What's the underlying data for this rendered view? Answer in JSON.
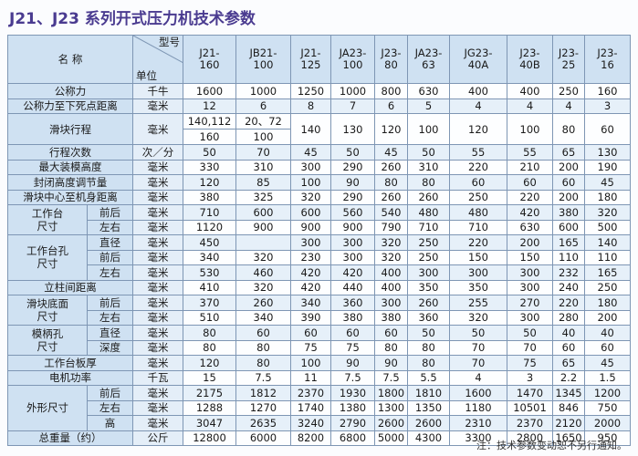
{
  "title": "J21、J23 系列开式压力机技术参数",
  "table": {
    "corner": {
      "name": "名 称",
      "model": "型号",
      "unit": "单位"
    },
    "models": [
      "J21-\n160",
      "JB21-\n100",
      "J21-\n125",
      "JA23-\n100",
      "J23-\n80",
      "JA23-\n63",
      "JG23-\n40A",
      "J23-\n40B",
      "J23-\n25",
      "J23-\n16"
    ],
    "rows": [
      {
        "name": "公称力",
        "unit": "千牛",
        "values": [
          1600,
          1000,
          1250,
          1000,
          800,
          630,
          400,
          400,
          250,
          160
        ]
      },
      {
        "name": "公称力至下死点距离",
        "unit": "毫米",
        "values": [
          12,
          6,
          8,
          7,
          6,
          5,
          4,
          4,
          4,
          3
        ]
      },
      {
        "name": "滑块行程",
        "unit": "毫米",
        "values": [
          [
            "140,112",
            "160"
          ],
          [
            "20、72",
            "100"
          ],
          140,
          130,
          120,
          100,
          120,
          100,
          80,
          60
        ]
      },
      {
        "name": "行程次数",
        "unit": "次／分",
        "values": [
          50,
          70,
          45,
          50,
          45,
          50,
          55,
          55,
          65,
          130
        ]
      },
      {
        "name": "最大装模高度",
        "unit": "毫米",
        "values": [
          330,
          310,
          300,
          290,
          260,
          310,
          220,
          210,
          200,
          190
        ]
      },
      {
        "name": "封闭高度调节量",
        "unit": "毫米",
        "values": [
          120,
          85,
          100,
          90,
          80,
          80,
          60,
          60,
          60,
          45
        ]
      },
      {
        "name": "滑块中心至机身距离",
        "unit": "毫米",
        "values": [
          380,
          325,
          320,
          290,
          260,
          260,
          250,
          220,
          200,
          180
        ]
      },
      {
        "name": "工作台\n尺寸",
        "parts": [
          {
            "name": "前后",
            "unit": "毫米",
            "values": [
              710,
              600,
              600,
              560,
              540,
              480,
              480,
              420,
              380,
              320
            ]
          },
          {
            "name": "左右",
            "unit": "毫米",
            "values": [
              1120,
              900,
              900,
              900,
              790,
              710,
              710,
              630,
              600,
              500
            ]
          }
        ]
      },
      {
        "name": "工作台孔\n尺寸",
        "parts": [
          {
            "name": "直径",
            "unit": "毫米",
            "values": [
              450,
              null,
              300,
              300,
              320,
              250,
              220,
              200,
              165,
              140
            ]
          },
          {
            "name": "前后",
            "unit": "毫米",
            "values": [
              340,
              320,
              230,
              300,
              320,
              250,
              150,
              150,
              110,
              110
            ]
          },
          {
            "name": "左右",
            "unit": "毫米",
            "values": [
              530,
              460,
              420,
              420,
              400,
              300,
              300,
              300,
              232,
              165
            ]
          }
        ]
      },
      {
        "name": "立柱间距离",
        "unit": "毫米",
        "values": [
          410,
          320,
          420,
          440,
          400,
          350,
          350,
          300,
          240,
          250
        ]
      },
      {
        "name": "滑块底面\n尺寸",
        "parts": [
          {
            "name": "前后",
            "unit": "毫米",
            "values": [
              370,
              260,
              340,
              360,
              300,
              260,
              255,
              270,
              220,
              180
            ]
          },
          {
            "name": "左右",
            "unit": "毫米",
            "values": [
              510,
              340,
              390,
              380,
              380,
              360,
              320,
              300,
              280,
              200
            ]
          }
        ]
      },
      {
        "name": "模柄孔\n尺寸",
        "parts": [
          {
            "name": "直径",
            "unit": "毫米",
            "values": [
              80,
              60,
              60,
              60,
              60,
              50,
              50,
              50,
              40,
              40
            ]
          },
          {
            "name": "深度",
            "unit": "毫米",
            "values": [
              80,
              80,
              75,
              75,
              80,
              80,
              70,
              70,
              60,
              60
            ]
          }
        ]
      },
      {
        "name": "工作台板厚",
        "unit": "毫米",
        "values": [
          120,
          80,
          100,
          90,
          90,
          80,
          70,
          75,
          65,
          45
        ]
      },
      {
        "name": "电机功率",
        "unit": "千瓦",
        "values": [
          15,
          7.5,
          11,
          7.5,
          7.5,
          5.5,
          4,
          3,
          2.2,
          1.5
        ]
      },
      {
        "name": "外形尺寸",
        "parts": [
          {
            "name": "前后",
            "unit": "毫米",
            "values": [
              2175,
              1812,
              2370,
              1930,
              1800,
              1810,
              1600,
              1470,
              1345,
              1200
            ]
          },
          {
            "name": "左右",
            "unit": "毫米",
            "values": [
              1288,
              1270,
              1740,
              1380,
              1300,
              1350,
              1180,
              10501,
              846,
              750
            ]
          },
          {
            "name": "高",
            "unit": "毫米",
            "values": [
              3047,
              2635,
              3240,
              2790,
              2600,
              2600,
              2310,
              2370,
              2120,
              2000
            ]
          }
        ]
      },
      {
        "name": "总重量（约）",
        "unit": "公斤",
        "values": [
          12800,
          6000,
          8200,
          6800,
          5000,
          4300,
          3300,
          2800,
          1650,
          950
        ]
      }
    ]
  },
  "note": "注：技术参数变动恕不另行通知。"
}
